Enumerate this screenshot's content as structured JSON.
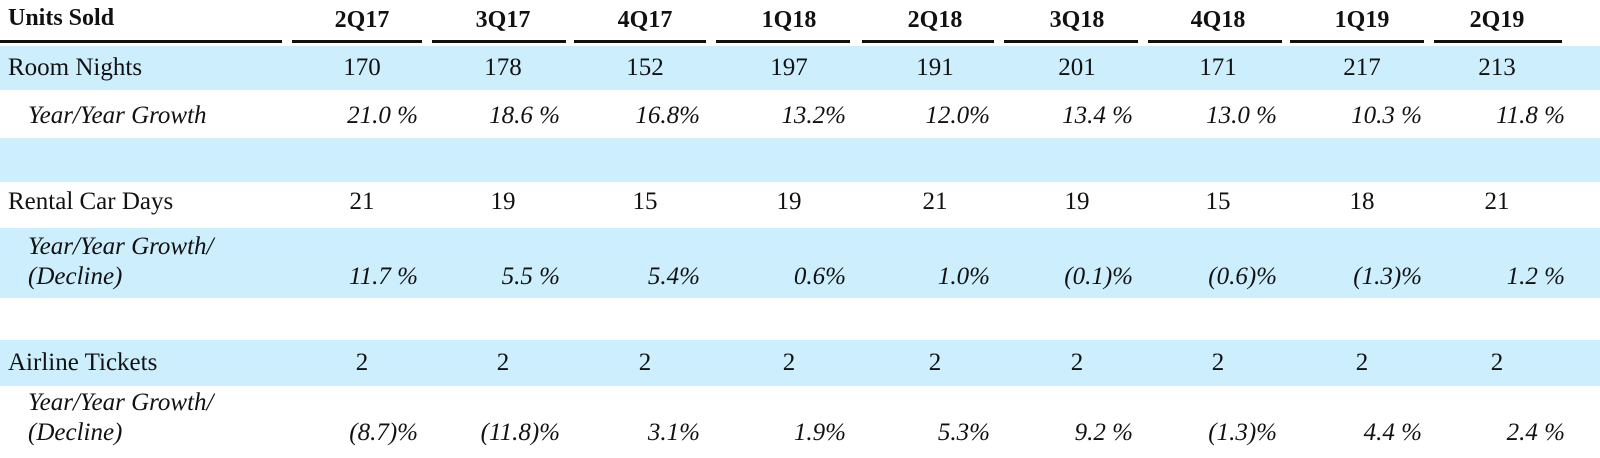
{
  "header": {
    "title": "Units Sold",
    "quarters": [
      "2Q17",
      "3Q17",
      "4Q17",
      "1Q18",
      "2Q18",
      "3Q18",
      "4Q18",
      "1Q19",
      "2Q19"
    ]
  },
  "rows": {
    "room_nights": {
      "label": "Room Nights",
      "values": [
        "170",
        "178",
        "152",
        "197",
        "191",
        "201",
        "171",
        "217",
        "213"
      ]
    },
    "room_nights_growth": {
      "label": "Year/Year Growth",
      "values": [
        "21.0 %",
        "18.6 %",
        "16.8%",
        "13.2%",
        "12.0%",
        "13.4 %",
        "13.0 %",
        "10.3 %",
        "11.8 %"
      ]
    },
    "rental_car_days": {
      "label": "Rental Car Days",
      "values": [
        "21",
        "19",
        "15",
        "19",
        "21",
        "19",
        "15",
        "18",
        "21"
      ]
    },
    "rental_car_growth": {
      "label_line1": "Year/Year Growth/",
      "label_line2": "(Decline)",
      "values": [
        "11.7 %",
        "5.5 %",
        "5.4%",
        "0.6%",
        "1.0%",
        "(0.1)%",
        "(0.6)%",
        "(1.3)%",
        "1.2 %"
      ]
    },
    "airline_tickets": {
      "label": "Airline Tickets",
      "values": [
        "2",
        "2",
        "2",
        "2",
        "2",
        "2",
        "2",
        "2",
        "2"
      ]
    },
    "airline_growth": {
      "label_line1": "Year/Year Growth/",
      "label_line2": "(Decline)",
      "values": [
        "(8.7)%",
        "(11.8)%",
        "3.1%",
        "1.9%",
        "5.3%",
        "9.2 %",
        "(1.3)%",
        "4.4 %",
        "2.4 %"
      ]
    }
  }
}
